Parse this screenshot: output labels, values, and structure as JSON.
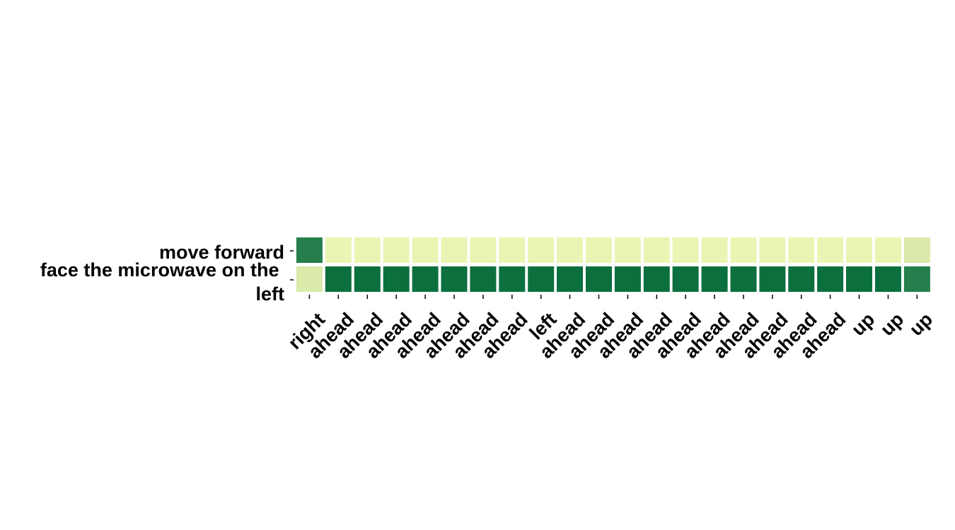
{
  "chart_data": {
    "type": "heatmap",
    "title": "",
    "xlabel": "",
    "ylabel": "",
    "rows": [
      "move forward",
      "face the microwave on the left"
    ],
    "columns": [
      "right",
      "ahead",
      "ahead",
      "ahead",
      "ahead",
      "ahead",
      "ahead",
      "ahead",
      "left",
      "ahead",
      "ahead",
      "ahead",
      "ahead",
      "ahead",
      "ahead",
      "ahead",
      "ahead",
      "ahead",
      "ahead",
      "up",
      "up",
      "up"
    ],
    "values": [
      [
        0.85,
        0.05,
        0.05,
        0.05,
        0.05,
        0.05,
        0.05,
        0.05,
        0.05,
        0.05,
        0.05,
        0.05,
        0.05,
        0.05,
        0.05,
        0.05,
        0.05,
        0.05,
        0.05,
        0.05,
        0.05,
        0.12
      ],
      [
        0.12,
        0.95,
        0.95,
        0.95,
        0.95,
        0.95,
        0.95,
        0.95,
        0.95,
        0.95,
        0.95,
        0.95,
        0.95,
        0.95,
        0.95,
        0.95,
        0.95,
        0.95,
        0.95,
        0.95,
        0.95,
        0.85
      ]
    ],
    "colormap": "YlGn",
    "color_low": "#f7fcb9",
    "color_high": "#006837",
    "grid": false
  }
}
